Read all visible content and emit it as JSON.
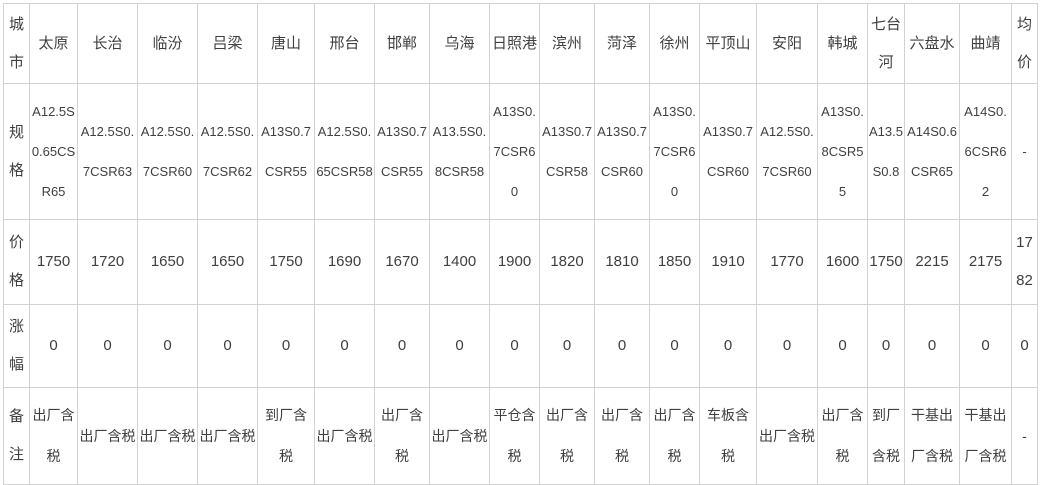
{
  "chart_data": {
    "type": "table",
    "title": "",
    "row_labels": [
      "城市",
      "规格",
      "价格",
      "涨幅",
      "备注"
    ],
    "columns": [
      {
        "city": "太原",
        "spec": "A12.5S0.65CSR65",
        "price": "1750",
        "change": "0",
        "note": "出厂含税"
      },
      {
        "city": "长治",
        "spec": "A12.5S0.7CSR63",
        "price": "1720",
        "change": "0",
        "note": "出厂含税"
      },
      {
        "city": "临汾",
        "spec": "A12.5S0.7CSR60",
        "price": "1650",
        "change": "0",
        "note": "出厂含税"
      },
      {
        "city": "吕梁",
        "spec": "A12.5S0.7CSR62",
        "price": "1650",
        "change": "0",
        "note": "出厂含税"
      },
      {
        "city": "唐山",
        "spec": "A13S0.7CSR55",
        "price": "1750",
        "change": "0",
        "note": "到厂含税"
      },
      {
        "city": "邢台",
        "spec": "A12.5S0.65CSR58",
        "price": "1690",
        "change": "0",
        "note": "出厂含税"
      },
      {
        "city": "邯郸",
        "spec": "A13S0.7CSR55",
        "price": "1670",
        "change": "0",
        "note": "出厂含税"
      },
      {
        "city": "乌海",
        "spec": "A13.5S0.8CSR58",
        "price": "1400",
        "change": "0",
        "note": "出厂含税"
      },
      {
        "city": "日照港",
        "spec": "A13S0.7CSR60",
        "price": "1900",
        "change": "0",
        "note": "平仓含税"
      },
      {
        "city": "滨州",
        "spec": "A13S0.7CSR58",
        "price": "1820",
        "change": "0",
        "note": "出厂含税"
      },
      {
        "city": "菏泽",
        "spec": "A13S0.7CSR60",
        "price": "1810",
        "change": "0",
        "note": "出厂含税"
      },
      {
        "city": "徐州",
        "spec": "A13S0.7CSR60",
        "price": "1850",
        "change": "0",
        "note": "出厂含税"
      },
      {
        "city": "平顶山",
        "spec": "A13S0.7CSR60",
        "price": "1910",
        "change": "0",
        "note": "车板含税"
      },
      {
        "city": "安阳",
        "spec": "A12.5S0.7CSR60",
        "price": "1770",
        "change": "0",
        "note": "出厂含税"
      },
      {
        "city": "韩城",
        "spec": "A13S0.8CSR55",
        "price": "1600",
        "change": "0",
        "note": "出厂含税"
      },
      {
        "city": "七台河",
        "spec": "A13.5S0.8",
        "price": "1750",
        "change": "0",
        "note": "到厂含税"
      },
      {
        "city": "六盘水",
        "spec": "A14S0.6CSR65",
        "price": "2215",
        "change": "0",
        "note": "干基出厂含税"
      },
      {
        "city": "曲靖",
        "spec": "A14S0.6CSR62",
        "price": "2175",
        "change": "0",
        "note": "干基出厂含税"
      },
      {
        "city": "均价",
        "spec": "-",
        "price": "1782",
        "change": "0",
        "note": "-"
      }
    ],
    "colors": {
      "text": "#3f3f3f",
      "border": "#d2d2d2",
      "background": "#ffffff"
    },
    "layout_hints": {
      "grid": "on",
      "orientation": "rows are attributes, columns are cities"
    }
  }
}
